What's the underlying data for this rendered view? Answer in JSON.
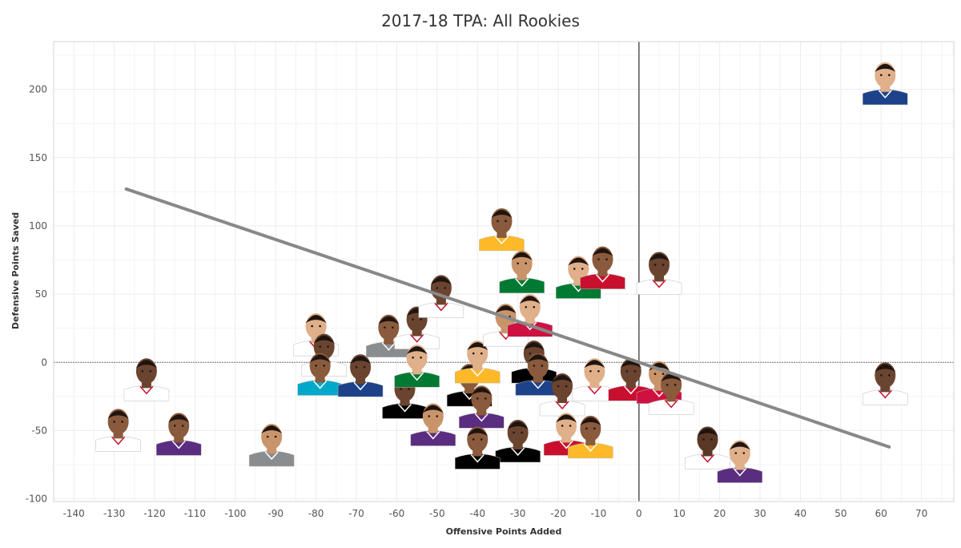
{
  "chart_data": {
    "type": "scatter",
    "title": "2017-18 TPA: All Rookies",
    "xlabel": "Offensive Points Added",
    "ylabel": "Defensive Points Saved",
    "xlim": [
      -145,
      78
    ],
    "ylim": [
      -102,
      235
    ],
    "x_ticks": [
      -140,
      -130,
      -120,
      -110,
      -100,
      -90,
      -80,
      -70,
      -60,
      -50,
      -40,
      -30,
      -20,
      -10,
      0,
      10,
      20,
      30,
      40,
      50,
      60,
      70
    ],
    "y_ticks": [
      -100,
      -50,
      0,
      50,
      100,
      150,
      200
    ],
    "grid": true,
    "reference_lines": {
      "x": 0,
      "y": 0
    },
    "trend_line": {
      "x": [
        -127,
        62
      ],
      "y": [
        127,
        -62
      ],
      "color": "#888888"
    },
    "marker_style": "player-headshot",
    "colors": {
      "grid": "#ececec",
      "axis": "#555555",
      "skin_tones": [
        "#6b4430",
        "#8a5a3c",
        "#c9946a",
        "#e0b08a",
        "#5a3826"
      ],
      "jerseys": [
        "#1d428a",
        "#c8102e",
        "#ffffff",
        "#5a2d81",
        "#fdb927",
        "#007a33",
        "#00a9c9",
        "#000000",
        "#8a8d8f",
        "#ce1141"
      ]
    },
    "points": [
      {
        "x": 61,
        "y": 207,
        "jersey": 0,
        "skin": 3
      },
      {
        "x": 61,
        "y": -13,
        "jersey": 2,
        "skin": 0
      },
      {
        "x": -122,
        "y": -10,
        "jersey": 2,
        "skin": 0
      },
      {
        "x": -129,
        "y": -47,
        "jersey": 2,
        "skin": 1
      },
      {
        "x": -114,
        "y": -50,
        "jersey": 3,
        "skin": 1
      },
      {
        "x": -91,
        "y": -58,
        "jersey": 8,
        "skin": 2
      },
      {
        "x": -80,
        "y": 23,
        "jersey": 2,
        "skin": 3
      },
      {
        "x": -78,
        "y": 8,
        "jersey": 2,
        "skin": 0
      },
      {
        "x": -79,
        "y": -6,
        "jersey": 6,
        "skin": 1
      },
      {
        "x": -69,
        "y": -7,
        "jersey": 0,
        "skin": 0
      },
      {
        "x": -62,
        "y": 22,
        "jersey": 8,
        "skin": 1
      },
      {
        "x": -58,
        "y": -23,
        "jersey": 7,
        "skin": 0
      },
      {
        "x": -55,
        "y": 28,
        "jersey": 2,
        "skin": 5
      },
      {
        "x": -55,
        "y": 0,
        "jersey": 5,
        "skin": 3
      },
      {
        "x": -49,
        "y": 51,
        "jersey": 2,
        "skin": 0
      },
      {
        "x": -51,
        "y": -43,
        "jersey": 3,
        "skin": 2
      },
      {
        "x": -42,
        "y": -14,
        "jersey": 7,
        "skin": 1
      },
      {
        "x": -40,
        "y": 3,
        "jersey": 4,
        "skin": 3
      },
      {
        "x": -39,
        "y": -30,
        "jersey": 3,
        "skin": 1
      },
      {
        "x": -33,
        "y": 30,
        "jersey": 2,
        "skin": 2
      },
      {
        "x": -34,
        "y": 100,
        "jersey": 4,
        "skin": 1
      },
      {
        "x": -29,
        "y": 69,
        "jersey": 5,
        "skin": 2
      },
      {
        "x": -27,
        "y": 37,
        "jersey": 9,
        "skin": 3
      },
      {
        "x": -26,
        "y": 3,
        "jersey": 7,
        "skin": 0
      },
      {
        "x": -25,
        "y": -6,
        "jersey": 0,
        "skin": 1
      },
      {
        "x": -19,
        "y": -21,
        "jersey": 2,
        "skin": 0
      },
      {
        "x": -18,
        "y": -50,
        "jersey": 1,
        "skin": 3
      },
      {
        "x": -12,
        "y": -52,
        "jersey": 4,
        "skin": 1
      },
      {
        "x": -15,
        "y": 65,
        "jersey": 5,
        "skin": 3
      },
      {
        "x": -9,
        "y": 72,
        "jersey": 1,
        "skin": 1
      },
      {
        "x": -11,
        "y": -10,
        "jersey": 2,
        "skin": 3
      },
      {
        "x": -2,
        "y": -10,
        "jersey": 1,
        "skin": 0
      },
      {
        "x": 5,
        "y": 68,
        "jersey": 2,
        "skin": 0
      },
      {
        "x": 5,
        "y": -12,
        "jersey": 9,
        "skin": 2
      },
      {
        "x": 8,
        "y": -20,
        "jersey": 2,
        "skin": 1
      },
      {
        "x": -30,
        "y": -55,
        "jersey": 7,
        "skin": 0
      },
      {
        "x": -40,
        "y": -60,
        "jersey": 7,
        "skin": 1
      },
      {
        "x": 17,
        "y": -60,
        "jersey": 2,
        "skin": 4
      },
      {
        "x": 25,
        "y": -70,
        "jersey": 3,
        "skin": 3
      }
    ]
  }
}
